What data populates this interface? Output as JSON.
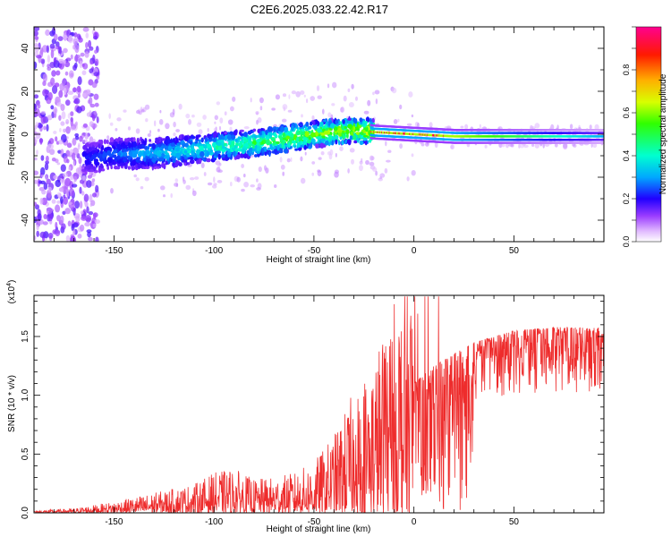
{
  "figure": {
    "title": "C2E6.2025.033.22.42.R17"
  },
  "chart_data": [
    {
      "type": "heatmap",
      "title": "C2E6.2025.033.22.42.R17",
      "xlabel": "Height of straight line (km)",
      "ylabel": "Frequency (Hz)",
      "xlim": [
        -190,
        95
      ],
      "ylim": [
        -50,
        50
      ],
      "xticks": [
        -150,
        -100,
        -50,
        0,
        50
      ],
      "yticks": [
        -40,
        -20,
        0,
        20,
        40
      ],
      "colorbar": {
        "label": "Normalized spectral amplitude",
        "range": [
          0,
          1
        ],
        "ticks": [
          0.0,
          0.2,
          0.4,
          0.6,
          0.8
        ]
      },
      "ridge": [
        {
          "x": -190,
          "y": -10
        },
        {
          "x": -160,
          "y": -11
        },
        {
          "x": -150,
          "y": -9
        },
        {
          "x": -130,
          "y": -9
        },
        {
          "x": -110,
          "y": -7
        },
        {
          "x": -90,
          "y": -5
        },
        {
          "x": -70,
          "y": -3
        },
        {
          "x": -50,
          "y": 0
        },
        {
          "x": -30,
          "y": 2
        },
        {
          "x": -20,
          "y": 1
        },
        {
          "x": 0,
          "y": 0
        },
        {
          "x": 20,
          "y": -1
        },
        {
          "x": 50,
          "y": -1
        },
        {
          "x": 95,
          "y": -1
        }
      ]
    },
    {
      "type": "line",
      "xlabel": "Height of straight line (km)",
      "ylabel": "SNR (10 * v/v)",
      "yscale_label_base": "(x10",
      "yscale_label_exp": "4",
      "yscale_label_close": ")",
      "xlim": [
        -190,
        95
      ],
      "ylim": [
        0,
        1.85
      ],
      "xticks": [
        -150,
        -100,
        -50,
        0,
        50
      ],
      "yticks": [
        0.0,
        0.5,
        1.0,
        1.5
      ],
      "series": [
        {
          "color": "#ee2c2c",
          "envelope": [
            {
              "x": -190,
              "y": 0.01
            },
            {
              "x": -170,
              "y": 0.02
            },
            {
              "x": -150,
              "y": 0.05
            },
            {
              "x": -130,
              "y": 0.09
            },
            {
              "x": -110,
              "y": 0.13
            },
            {
              "x": -100,
              "y": 0.18
            },
            {
              "x": -90,
              "y": 0.2
            },
            {
              "x": -80,
              "y": 0.15
            },
            {
              "x": -70,
              "y": 0.16
            },
            {
              "x": -60,
              "y": 0.18
            },
            {
              "x": -50,
              "y": 0.23
            },
            {
              "x": -40,
              "y": 0.35
            },
            {
              "x": -30,
              "y": 0.55
            },
            {
              "x": -20,
              "y": 0.7
            },
            {
              "x": -10,
              "y": 0.95
            },
            {
              "x": 0,
              "y": 1.1
            },
            {
              "x": 10,
              "y": 1.25
            },
            {
              "x": 20,
              "y": 1.35
            },
            {
              "x": 30,
              "y": 1.45
            },
            {
              "x": 40,
              "y": 1.5
            },
            {
              "x": 50,
              "y": 1.55
            },
            {
              "x": 70,
              "y": 1.58
            },
            {
              "x": 95,
              "y": 1.57
            }
          ]
        }
      ]
    }
  ]
}
